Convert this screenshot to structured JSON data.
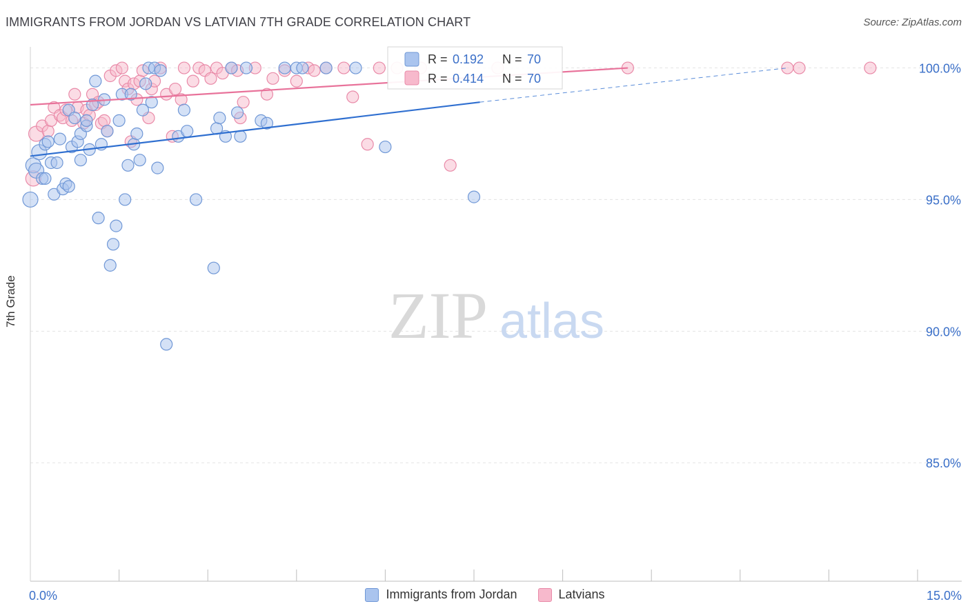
{
  "chart_data": {
    "type": "scatter",
    "title": "IMMIGRANTS FROM JORDAN VS LATVIAN 7TH GRADE CORRELATION CHART",
    "source": "Source: ZipAtlas.com",
    "watermark": {
      "zip": "ZIP",
      "atlas": "atlas"
    },
    "ylabel": "7th Grade",
    "xlim": [
      0,
      15
    ],
    "ylim": [
      80.5,
      100.8
    ],
    "x_tick_labels": [
      "0.0%",
      "15.0%"
    ],
    "y_ticks": [
      100,
      95,
      90,
      85
    ],
    "y_tick_labels": [
      "100.0%",
      "95.0%",
      "90.0%",
      "85.0%"
    ],
    "legend": [
      {
        "r_label": "R =",
        "r_value": "0.192",
        "n_label": "N =",
        "n_value": "70"
      },
      {
        "r_label": "R =",
        "r_value": "0.414",
        "n_label": "N =",
        "n_value": "70"
      }
    ],
    "colors": {
      "blue_fill": "#aac4ee",
      "blue_stroke": "#6f97d6",
      "blue_line": "#2f6fd0",
      "pink_fill": "#f7b9cc",
      "pink_stroke": "#e98aa8",
      "pink_line": "#e8729a",
      "value_text": "#3a6fc8"
    },
    "series": [
      {
        "name": "Immigrants from Jordan",
        "trend": {
          "x0": 0.0,
          "y0": 96.65,
          "x1": 7.6,
          "y1": 98.7,
          "dash_to_x": 12.8,
          "dash_to_y": 100.0
        },
        "points": [
          [
            0.0,
            95.0
          ],
          [
            0.05,
            96.3
          ],
          [
            0.1,
            96.1
          ],
          [
            0.15,
            96.8
          ],
          [
            0.2,
            95.8
          ],
          [
            0.25,
            95.8
          ],
          [
            0.25,
            97.1
          ],
          [
            0.3,
            97.2
          ],
          [
            0.35,
            96.4
          ],
          [
            0.4,
            95.2
          ],
          [
            0.45,
            96.4
          ],
          [
            0.5,
            97.3
          ],
          [
            0.55,
            95.4
          ],
          [
            0.6,
            95.6
          ],
          [
            0.65,
            95.5
          ],
          [
            0.65,
            98.4
          ],
          [
            0.7,
            97.0
          ],
          [
            0.75,
            98.1
          ],
          [
            0.8,
            97.2
          ],
          [
            0.85,
            96.5
          ],
          [
            0.85,
            97.5
          ],
          [
            0.95,
            97.8
          ],
          [
            0.95,
            98.0
          ],
          [
            1.0,
            96.9
          ],
          [
            1.05,
            98.6
          ],
          [
            1.1,
            99.5
          ],
          [
            1.15,
            94.3
          ],
          [
            1.2,
            97.1
          ],
          [
            1.25,
            98.8
          ],
          [
            1.3,
            97.6
          ],
          [
            1.35,
            92.5
          ],
          [
            1.4,
            93.3
          ],
          [
            1.45,
            94.0
          ],
          [
            1.5,
            98.0
          ],
          [
            1.55,
            99.0
          ],
          [
            1.6,
            95.0
          ],
          [
            1.65,
            96.3
          ],
          [
            1.7,
            99.0
          ],
          [
            1.75,
            97.1
          ],
          [
            1.8,
            97.5
          ],
          [
            1.85,
            96.5
          ],
          [
            1.9,
            98.4
          ],
          [
            1.95,
            99.4
          ],
          [
            2.0,
            100.0
          ],
          [
            2.05,
            98.7
          ],
          [
            2.1,
            100.0
          ],
          [
            2.15,
            96.2
          ],
          [
            2.2,
            99.9
          ],
          [
            2.3,
            89.5
          ],
          [
            2.5,
            97.4
          ],
          [
            2.6,
            98.4
          ],
          [
            2.65,
            97.6
          ],
          [
            2.8,
            95.0
          ],
          [
            3.1,
            92.4
          ],
          [
            3.15,
            97.7
          ],
          [
            3.2,
            98.1
          ],
          [
            3.3,
            97.4
          ],
          [
            3.4,
            100.0
          ],
          [
            3.5,
            98.3
          ],
          [
            3.55,
            97.4
          ],
          [
            3.65,
            100.0
          ],
          [
            3.9,
            98.0
          ],
          [
            4.0,
            97.9
          ],
          [
            4.3,
            100.0
          ],
          [
            4.5,
            100.0
          ],
          [
            4.6,
            100.0
          ],
          [
            5.0,
            100.0
          ],
          [
            5.5,
            100.0
          ],
          [
            6.0,
            97.0
          ],
          [
            7.5,
            95.1
          ]
        ]
      },
      {
        "name": "Latvians",
        "trend": {
          "x0": 0.0,
          "y0": 98.6,
          "x1": 10.1,
          "y1": 100.0
        },
        "points": [
          [
            0.05,
            95.8
          ],
          [
            0.1,
            97.5
          ],
          [
            0.2,
            97.8
          ],
          [
            0.3,
            97.6
          ],
          [
            0.35,
            98.0
          ],
          [
            0.4,
            98.5
          ],
          [
            0.5,
            98.2
          ],
          [
            0.55,
            98.1
          ],
          [
            0.6,
            98.4
          ],
          [
            0.7,
            98.0
          ],
          [
            0.75,
            99.0
          ],
          [
            0.8,
            98.5
          ],
          [
            0.9,
            97.9
          ],
          [
            0.95,
            98.4
          ],
          [
            1.0,
            98.2
          ],
          [
            1.05,
            99.0
          ],
          [
            1.1,
            98.6
          ],
          [
            1.15,
            98.7
          ],
          [
            1.2,
            97.9
          ],
          [
            1.25,
            98.0
          ],
          [
            1.3,
            97.6
          ],
          [
            1.35,
            99.7
          ],
          [
            1.45,
            99.9
          ],
          [
            1.55,
            100.0
          ],
          [
            1.6,
            99.5
          ],
          [
            1.65,
            99.2
          ],
          [
            1.7,
            97.2
          ],
          [
            1.75,
            99.4
          ],
          [
            1.8,
            98.8
          ],
          [
            1.85,
            99.5
          ],
          [
            1.9,
            99.9
          ],
          [
            2.0,
            98.1
          ],
          [
            2.05,
            99.2
          ],
          [
            2.1,
            99.5
          ],
          [
            2.2,
            100.0
          ],
          [
            2.3,
            99.0
          ],
          [
            2.4,
            97.4
          ],
          [
            2.45,
            99.2
          ],
          [
            2.55,
            98.8
          ],
          [
            2.6,
            100.0
          ],
          [
            2.75,
            99.5
          ],
          [
            2.85,
            100.0
          ],
          [
            2.95,
            99.9
          ],
          [
            3.05,
            99.6
          ],
          [
            3.15,
            100.0
          ],
          [
            3.25,
            99.8
          ],
          [
            3.4,
            100.0
          ],
          [
            3.5,
            99.9
          ],
          [
            3.55,
            98.1
          ],
          [
            3.6,
            98.7
          ],
          [
            3.8,
            100.0
          ],
          [
            4.0,
            99.0
          ],
          [
            4.1,
            99.6
          ],
          [
            4.3,
            99.9
          ],
          [
            4.5,
            99.5
          ],
          [
            4.7,
            100.0
          ],
          [
            4.8,
            99.9
          ],
          [
            5.0,
            100.0
          ],
          [
            5.3,
            100.0
          ],
          [
            5.45,
            98.9
          ],
          [
            5.7,
            97.1
          ],
          [
            5.9,
            100.0
          ],
          [
            6.2,
            100.0
          ],
          [
            6.6,
            100.0
          ],
          [
            7.1,
            96.3
          ],
          [
            7.9,
            100.0
          ],
          [
            10.1,
            100.0
          ],
          [
            12.8,
            100.0
          ],
          [
            13.0,
            100.0
          ],
          [
            14.2,
            100.0
          ]
        ]
      }
    ]
  }
}
